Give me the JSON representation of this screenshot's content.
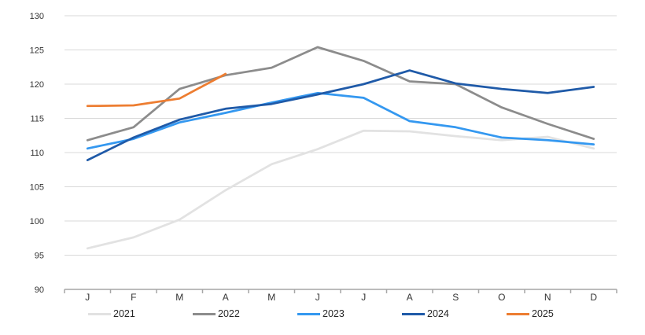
{
  "chart_data": {
    "type": "line",
    "title": "",
    "xlabel": "",
    "ylabel": "",
    "categories": [
      "J",
      "F",
      "M",
      "A",
      "M",
      "J",
      "J",
      "A",
      "S",
      "O",
      "N",
      "D"
    ],
    "series": [
      {
        "name": "2021",
        "color": "#E2E2E2",
        "values": [
          96.0,
          97.6,
          100.2,
          104.5,
          108.3,
          110.5,
          113.2,
          113.1,
          112.4,
          111.8,
          112.3,
          110.6
        ]
      },
      {
        "name": "2022",
        "color": "#8C8C8C",
        "values": [
          111.8,
          113.7,
          119.3,
          121.3,
          122.4,
          125.4,
          123.4,
          120.4,
          120.0,
          116.6,
          114.2,
          112.0
        ]
      },
      {
        "name": "2023",
        "color": "#3498F0",
        "values": [
          110.6,
          112.0,
          114.4,
          115.8,
          117.3,
          118.7,
          118.0,
          114.6,
          113.7,
          112.2,
          111.8,
          111.2
        ]
      },
      {
        "name": "2024",
        "color": "#1F5AA8",
        "values": [
          108.9,
          112.2,
          114.8,
          116.4,
          117.1,
          118.5,
          120.0,
          122.0,
          120.1,
          119.3,
          118.7,
          119.6
        ]
      },
      {
        "name": "2025",
        "color": "#ED7D31",
        "values": [
          116.8,
          116.9,
          117.9,
          121.5
        ]
      }
    ],
    "ylim": [
      90,
      130
    ],
    "yticks": [
      90,
      95,
      100,
      105,
      110,
      115,
      120,
      125,
      130
    ],
    "grid": true,
    "legend_position": "bottom",
    "legend_entries": [
      "2021",
      "2022",
      "2023",
      "2024",
      "2025"
    ]
  },
  "style_colors": {
    "gridline": "#D9D9D9",
    "axis_line": "#A6A6A6",
    "tick_label": "#333333"
  }
}
